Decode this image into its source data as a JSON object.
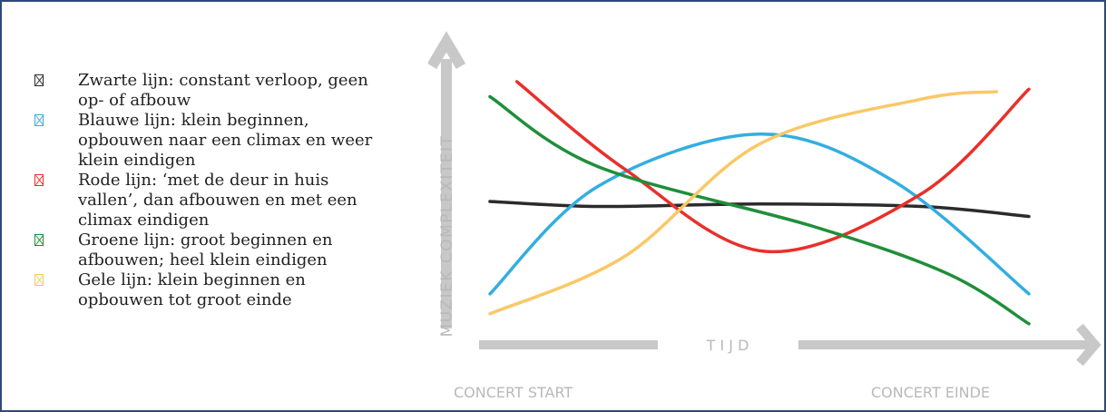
{
  "legend": {
    "items": [
      {
        "text": "Zwarte lijn: constant verloop, geen op- of afbouw",
        "color": "#2b2b2b"
      },
      {
        "text": "Blauwe lijn: klein beginnen, opbouwen naar een climax en weer klein eindigen",
        "color": "#33aee0"
      },
      {
        "text": "Rode lijn: ‘met de deur in huis vallen’, dan afbouwen en met een climax eindigen",
        "color": "#e8302b"
      },
      {
        "text": "Groene lijn: groot beginnen en afbouwen; heel klein eindigen",
        "color": "#1f8f3a"
      },
      {
        "text": "Gele lijn: klein beginnen en opbouwen tot groot einde",
        "color": "#f9c866"
      }
    ]
  },
  "chart_data": {
    "type": "line",
    "ylabel": "MUZIEK COMPLEXITEIT",
    "xlabel": "T I J D",
    "x_start_label": "CONCERT  START",
    "x_end_label": "CONCERT EINDE",
    "xlim": [
      0,
      1
    ],
    "ylim": [
      0,
      1
    ],
    "axis_color": "#c8c8c8",
    "grid": false,
    "series": [
      {
        "color": "#2b2b2b",
        "x": [
          0,
          0.2,
          0.5,
          0.8,
          1
        ],
        "y": [
          0.52,
          0.5,
          0.51,
          0.5,
          0.46
        ]
      },
      {
        "color": "#33aee0",
        "x": [
          0,
          0.2,
          0.5,
          0.75,
          1
        ],
        "y": [
          0.15,
          0.58,
          0.79,
          0.6,
          0.15
        ]
      },
      {
        "color": "#e8302b",
        "x": [
          0.05,
          0.25,
          0.51,
          0.8,
          1
        ],
        "y": [
          1.0,
          0.65,
          0.32,
          0.55,
          0.97
        ]
      },
      {
        "color": "#1f8f3a",
        "x": [
          0,
          0.2,
          0.6,
          0.85,
          1
        ],
        "y": [
          0.94,
          0.66,
          0.42,
          0.23,
          0.03
        ]
      },
      {
        "color": "#f9c866",
        "x": [
          0,
          0.25,
          0.5,
          0.8,
          0.94
        ],
        "y": [
          0.07,
          0.3,
          0.75,
          0.93,
          0.96
        ]
      }
    ]
  }
}
